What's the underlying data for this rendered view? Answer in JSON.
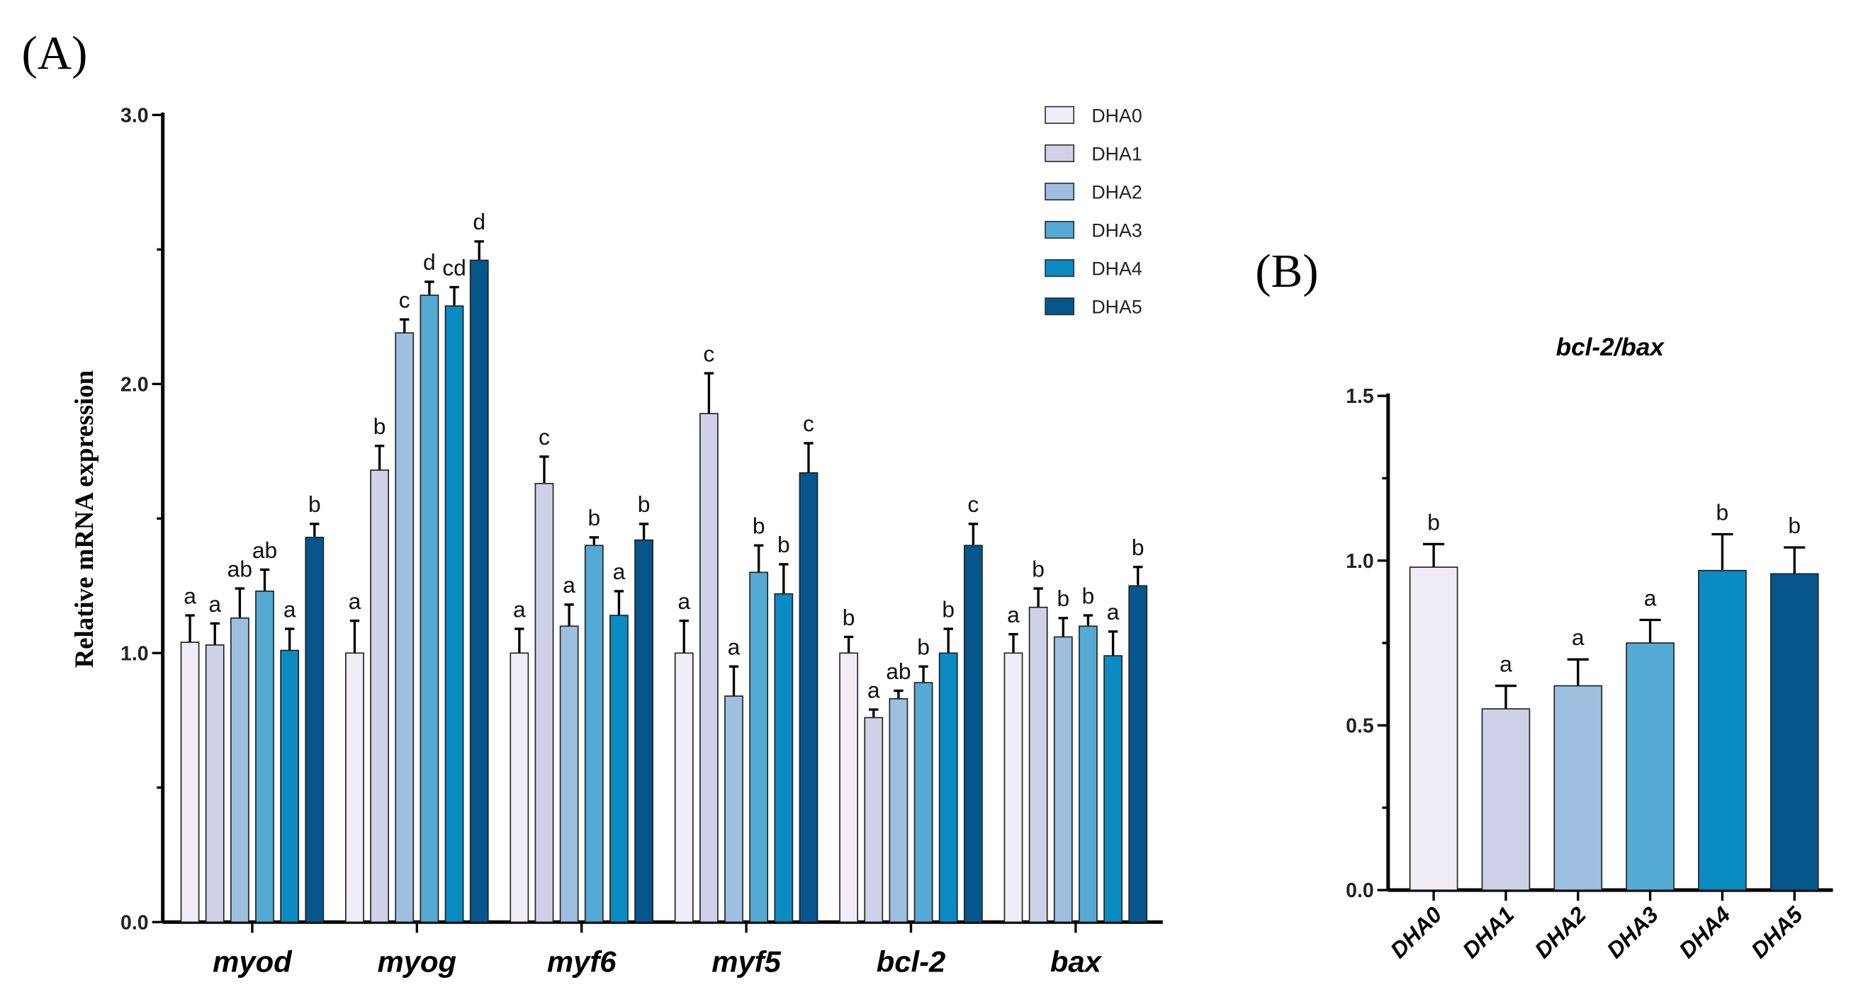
{
  "chart_data": [
    {
      "type": "bar",
      "panel_label": "(A)",
      "title": "",
      "xlabel": "",
      "ylabel": "Relative mRNA expression",
      "ylim": [
        0,
        3
      ],
      "yticks": [
        "0.0",
        "1.0",
        "2.0",
        "3.0"
      ],
      "categories": [
        "myod",
        "myog",
        "myf6",
        "myf5",
        "bcl-2",
        "bax"
      ],
      "legend_position": "top-right",
      "series": [
        {
          "name": "DHA0",
          "color": "#f1edf6",
          "values": [
            1.04,
            1.0,
            1.0,
            1.0,
            1.0,
            1.0
          ],
          "error_top": [
            1.14,
            1.12,
            1.09,
            1.12,
            1.06,
            1.07
          ],
          "letters": [
            "a",
            "a",
            "a",
            "a",
            "b",
            "a"
          ]
        },
        {
          "name": "DHA1",
          "color": "#d0d1e9",
          "values": [
            1.03,
            1.68,
            1.63,
            1.89,
            0.76,
            1.17
          ],
          "error_top": [
            1.11,
            1.77,
            1.73,
            2.04,
            0.79,
            1.24
          ],
          "letters": [
            "a",
            "b",
            "c",
            "c",
            "a",
            "b"
          ]
        },
        {
          "name": "DHA2",
          "color": "#9ebfdf",
          "values": [
            1.13,
            2.19,
            1.1,
            0.84,
            0.83,
            1.06
          ],
          "error_top": [
            1.24,
            2.24,
            1.18,
            0.95,
            0.86,
            1.13
          ],
          "letters": [
            "ab",
            "c",
            "a",
            "a",
            "ab",
            "b"
          ]
        },
        {
          "name": "DHA3",
          "color": "#55aad4",
          "values": [
            1.23,
            2.33,
            1.4,
            1.3,
            0.89,
            1.1
          ],
          "error_top": [
            1.31,
            2.38,
            1.43,
            1.4,
            0.95,
            1.14
          ],
          "letters": [
            "ab",
            "d",
            "b",
            "b",
            "b",
            "b"
          ]
        },
        {
          "name": "DHA4",
          "color": "#0a8bc2",
          "values": [
            1.01,
            2.29,
            1.14,
            1.22,
            1.0,
            0.99
          ],
          "error_top": [
            1.09,
            2.36,
            1.23,
            1.33,
            1.09,
            1.08
          ],
          "letters": [
            "a",
            "cd",
            "a",
            "b",
            "b",
            "a"
          ]
        },
        {
          "name": "DHA5",
          "color": "#07568b",
          "values": [
            1.43,
            2.46,
            1.42,
            1.67,
            1.4,
            1.25
          ],
          "error_top": [
            1.48,
            2.53,
            1.48,
            1.78,
            1.48,
            1.32
          ],
          "letters": [
            "b",
            "d",
            "b",
            "c",
            "c",
            "b"
          ]
        }
      ]
    },
    {
      "type": "bar",
      "panel_label": "(B)",
      "title": "bcl-2/bax",
      "xlabel": "",
      "ylabel": "",
      "ylim": [
        0,
        1.5
      ],
      "yticks": [
        "0.0",
        "0.5",
        "1.0",
        "1.5"
      ],
      "categories": [
        "DHA0",
        "DHA1",
        "DHA2",
        "DHA3",
        "DHA4",
        "DHA5"
      ],
      "colors": [
        "#f1edf6",
        "#d0d1e9",
        "#9ebfdf",
        "#55aad4",
        "#0a8bc2",
        "#07568b"
      ],
      "values": [
        0.98,
        0.55,
        0.62,
        0.75,
        0.97,
        0.96
      ],
      "error_top": [
        1.05,
        0.62,
        0.7,
        0.82,
        1.08,
        1.04
      ],
      "letters": [
        "b",
        "a",
        "a",
        "a",
        "b",
        "b"
      ]
    }
  ]
}
